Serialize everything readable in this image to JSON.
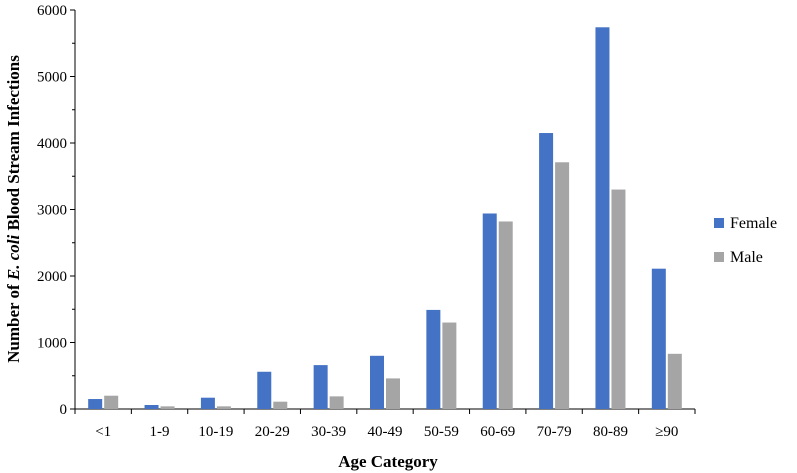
{
  "chart_data": {
    "type": "bar",
    "categories": [
      "<1",
      "1-9",
      "10-19",
      "20-29",
      "30-39",
      "40-49",
      "50-59",
      "60-69",
      "70-79",
      "80-89",
      "≥90"
    ],
    "series": [
      {
        "name": "Female",
        "color": "#4472C4",
        "values": [
          150,
          60,
          170,
          560,
          660,
          800,
          1490,
          2940,
          4150,
          5740,
          2110
        ]
      },
      {
        "name": "Male",
        "color": "#A5A5A5",
        "values": [
          200,
          40,
          40,
          110,
          190,
          460,
          1300,
          2820,
          3710,
          3300,
          830
        ]
      }
    ],
    "xlabel": "Age Category",
    "ylabel": {
      "prefix": "Number of ",
      "italic": "E. coli",
      "suffix": " Blood Stream Infections"
    },
    "ylim": [
      0,
      6000
    ],
    "yticks": [
      0,
      1000,
      2000,
      3000,
      4000,
      5000,
      6000
    ],
    "grid": false,
    "legend": "right"
  }
}
